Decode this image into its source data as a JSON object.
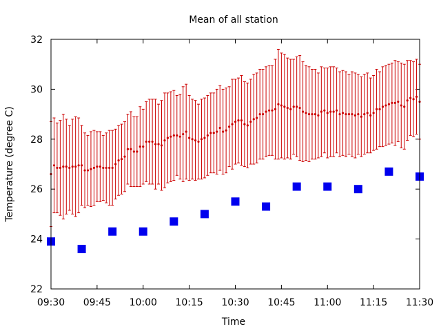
{
  "chart_data": {
    "type": "scatter",
    "title": "Mean of all station",
    "xlabel": "Time",
    "ylabel": "Temperature (degree C)",
    "xlim": [
      "09:30",
      "11:30"
    ],
    "ylim": [
      22,
      32
    ],
    "x_ticks": [
      "09:30",
      "09:45",
      "10:00",
      "10:15",
      "10:30",
      "10:45",
      "11:00",
      "11:15",
      "11:30"
    ],
    "y_ticks": [
      22,
      24,
      26,
      28,
      30,
      32
    ],
    "grid": false,
    "legend": "none",
    "series": [
      {
        "style": "red points with vertical error bars",
        "color": "#cc0000",
        "x": [
          "09:30",
          "09:31",
          "09:32",
          "09:33",
          "09:34",
          "09:35",
          "09:36",
          "09:37",
          "09:38",
          "09:39",
          "09:40",
          "09:41",
          "09:42",
          "09:43",
          "09:44",
          "09:45",
          "09:46",
          "09:47",
          "09:48",
          "09:49",
          "09:50",
          "09:51",
          "09:52",
          "09:53",
          "09:54",
          "09:55",
          "09:56",
          "09:57",
          "09:58",
          "09:59",
          "10:00",
          "10:01",
          "10:02",
          "10:03",
          "10:04",
          "10:05",
          "10:06",
          "10:07",
          "10:08",
          "10:09",
          "10:10",
          "10:11",
          "10:12",
          "10:13",
          "10:14",
          "10:15",
          "10:16",
          "10:17",
          "10:18",
          "10:19",
          "10:20",
          "10:21",
          "10:22",
          "10:23",
          "10:24",
          "10:25",
          "10:26",
          "10:27",
          "10:28",
          "10:29",
          "10:30",
          "10:31",
          "10:32",
          "10:33",
          "10:34",
          "10:35",
          "10:36",
          "10:37",
          "10:38",
          "10:39",
          "10:40",
          "10:41",
          "10:42",
          "10:43",
          "10:44",
          "10:45",
          "10:46",
          "10:47",
          "10:48",
          "10:49",
          "10:50",
          "10:51",
          "10:52",
          "10:53",
          "10:54",
          "10:55",
          "10:56",
          "10:57",
          "10:58",
          "10:59",
          "11:00",
          "11:01",
          "11:02",
          "11:03",
          "11:04",
          "11:05",
          "11:06",
          "11:07",
          "11:08",
          "11:09",
          "11:10",
          "11:11",
          "11:12",
          "11:13",
          "11:14",
          "11:15",
          "11:16",
          "11:17",
          "11:18",
          "11:19",
          "11:20",
          "11:21",
          "11:22",
          "11:23",
          "11:24",
          "11:25",
          "11:26",
          "11:27",
          "11:28",
          "11:29",
          "11:30"
        ],
        "y": [
          26.6,
          26.95,
          26.85,
          26.85,
          26.9,
          26.9,
          26.85,
          26.9,
          26.9,
          26.95,
          26.95,
          26.75,
          26.75,
          26.8,
          26.85,
          26.9,
          26.9,
          26.85,
          26.85,
          26.85,
          26.85,
          27.0,
          27.15,
          27.2,
          27.3,
          27.6,
          27.6,
          27.5,
          27.5,
          27.7,
          27.7,
          27.9,
          27.9,
          27.9,
          27.8,
          27.8,
          27.75,
          27.95,
          28.05,
          28.1,
          28.15,
          28.15,
          28.1,
          28.2,
          28.3,
          28.05,
          28.0,
          27.95,
          27.9,
          28.0,
          28.05,
          28.15,
          28.25,
          28.25,
          28.3,
          28.45,
          28.3,
          28.35,
          28.5,
          28.6,
          28.7,
          28.75,
          28.75,
          28.6,
          28.55,
          28.7,
          28.8,
          28.85,
          29.0,
          29.0,
          29.1,
          29.15,
          29.15,
          29.2,
          29.4,
          29.35,
          29.3,
          29.25,
          29.2,
          29.3,
          29.3,
          29.25,
          29.1,
          29.05,
          29.0,
          29.0,
          29.0,
          28.95,
          29.1,
          29.15,
          29.05,
          29.1,
          29.1,
          29.15,
          29.0,
          29.05,
          29.0,
          29.0,
          29.0,
          28.95,
          29.0,
          28.9,
          29.0,
          29.05,
          28.95,
          29.05,
          29.2,
          29.2,
          29.3,
          29.35,
          29.4,
          29.45,
          29.45,
          29.5,
          29.35,
          29.3,
          29.55,
          29.65,
          29.6,
          29.7,
          29.5
        ],
        "error": [
          2.1,
          1.9,
          1.8,
          1.9,
          2.1,
          1.9,
          1.7,
          1.9,
          2.0,
          1.9,
          1.6,
          1.5,
          1.4,
          1.5,
          1.5,
          1.4,
          1.4,
          1.3,
          1.4,
          1.5,
          1.5,
          1.4,
          1.4,
          1.4,
          1.4,
          1.4,
          1.5,
          1.4,
          1.4,
          1.6,
          1.5,
          1.6,
          1.7,
          1.7,
          1.8,
          1.6,
          1.8,
          1.9,
          1.8,
          1.8,
          1.8,
          1.6,
          1.7,
          1.9,
          1.9,
          1.7,
          1.6,
          1.6,
          1.5,
          1.6,
          1.6,
          1.6,
          1.6,
          1.6,
          1.7,
          1.7,
          1.7,
          1.7,
          1.6,
          1.8,
          1.7,
          1.7,
          1.8,
          1.7,
          1.7,
          1.7,
          1.8,
          1.8,
          1.8,
          1.8,
          1.8,
          1.8,
          1.8,
          2.0,
          2.2,
          2.1,
          2.1,
          2.0,
          2.0,
          1.9,
          2.0,
          2.1,
          2.0,
          1.9,
          1.9,
          1.8,
          1.8,
          1.7,
          1.8,
          1.7,
          1.8,
          1.8,
          1.8,
          1.7,
          1.7,
          1.7,
          1.7,
          1.6,
          1.7,
          1.7,
          1.6,
          1.6,
          1.6,
          1.6,
          1.5,
          1.5,
          1.6,
          1.5,
          1.6,
          1.6,
          1.6,
          1.6,
          1.7,
          1.6,
          1.7,
          1.7,
          1.6,
          1.5,
          1.5,
          1.5,
          1.5
        ]
      },
      {
        "style": "blue squares",
        "color": "#0000ee",
        "x": [
          "09:30",
          "09:40",
          "09:50",
          "10:00",
          "10:10",
          "10:20",
          "10:30",
          "10:40",
          "10:50",
          "11:00",
          "11:10",
          "11:20",
          "11:30"
        ],
        "y": [
          23.9,
          23.6,
          24.3,
          24.3,
          24.7,
          25.0,
          25.5,
          25.3,
          26.1,
          26.1,
          26.0,
          26.7,
          26.5
        ]
      }
    ]
  }
}
